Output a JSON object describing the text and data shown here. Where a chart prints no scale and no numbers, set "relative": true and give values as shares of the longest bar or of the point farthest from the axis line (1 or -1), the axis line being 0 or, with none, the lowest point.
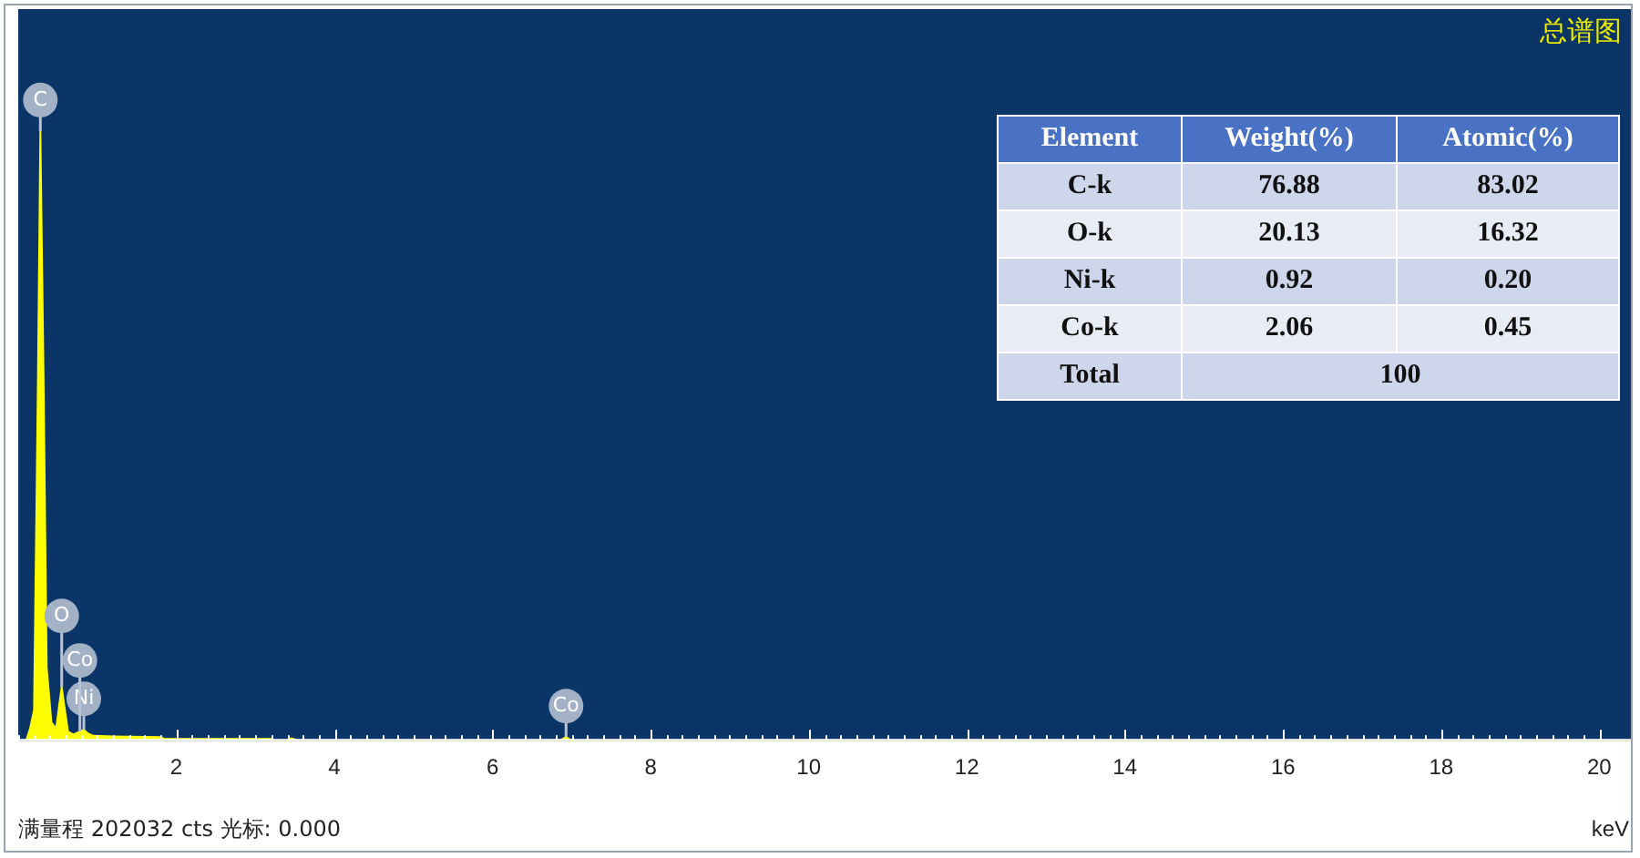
{
  "chart_data": [
    {
      "type": "area",
      "title": "总谱图",
      "xlabel": "keV",
      "relative": true,
      "x": [
        0.1,
        0.15,
        0.2,
        0.25,
        0.28,
        0.32,
        0.36,
        0.42,
        0.48,
        0.52,
        0.55,
        0.58,
        0.63,
        0.7,
        0.78,
        0.83,
        0.88,
        0.95,
        1.2,
        1.8,
        1.85,
        3.2,
        3.25,
        3.4,
        3.45,
        3.55,
        6.85,
        6.93,
        7.0,
        20.4
      ],
      "series": [
        {
          "color": "#ffff00",
          "values": [
            0,
            0.02,
            0.05,
            0.6,
            1,
            0.6,
            0.12,
            0.03,
            0.02,
            0.06,
            0.088,
            0.06,
            0.015,
            0.01,
            0.015,
            0.018,
            0.012,
            0.008,
            0.007,
            0.006,
            0.003,
            0.003,
            0,
            0,
            0.004,
            0,
            0,
            0.006,
            0,
            0
          ]
        }
      ],
      "xlim": [
        0,
        20.4
      ],
      "xticks": [
        {
          "value": 0,
          "label": null
        },
        {
          "value": 0.2,
          "label": null
        },
        {
          "value": 0.4,
          "label": null
        },
        {
          "value": 0.6,
          "label": null
        },
        {
          "value": 0.8,
          "label": null
        },
        {
          "value": 1,
          "label": null
        },
        {
          "value": 1.2,
          "label": null
        },
        {
          "value": 1.4,
          "label": null
        },
        {
          "value": 1.6,
          "label": null
        },
        {
          "value": 1.8,
          "label": null
        },
        2,
        {
          "value": 2.2,
          "label": null
        },
        {
          "value": 2.4,
          "label": null
        },
        {
          "value": 2.6,
          "label": null
        },
        {
          "value": 2.8,
          "label": null
        },
        {
          "value": 3,
          "label": null
        },
        {
          "value": 3.2,
          "label": null
        },
        {
          "value": 3.4,
          "label": null
        },
        {
          "value": 3.6,
          "label": null
        },
        {
          "value": 3.8,
          "label": null
        },
        4,
        {
          "value": 4.2,
          "label": null
        },
        {
          "value": 4.4,
          "label": null
        },
        {
          "value": 4.6,
          "label": null
        },
        {
          "value": 4.8,
          "label": null
        },
        {
          "value": 5,
          "label": null
        },
        {
          "value": 5.2,
          "label": null
        },
        {
          "value": 5.4,
          "label": null
        },
        {
          "value": 5.6,
          "label": null
        },
        {
          "value": 5.8,
          "label": null
        },
        6,
        {
          "value": 6.2,
          "label": null
        },
        {
          "value": 6.4,
          "label": null
        },
        {
          "value": 6.6,
          "label": null
        },
        {
          "value": 6.8,
          "label": null
        },
        {
          "value": 7,
          "label": null
        },
        {
          "value": 7.2,
          "label": null
        },
        {
          "value": 7.4,
          "label": null
        },
        {
          "value": 7.6,
          "label": null
        },
        {
          "value": 7.8,
          "label": null
        },
        8,
        {
          "value": 8.2,
          "label": null
        },
        {
          "value": 8.4,
          "label": null
        },
        {
          "value": 8.6,
          "label": null
        },
        {
          "value": 8.8,
          "label": null
        },
        {
          "value": 9,
          "label": null
        },
        {
          "value": 9.2,
          "label": null
        },
        {
          "value": 9.4,
          "label": null
        },
        {
          "value": 9.6,
          "label": null
        },
        {
          "value": 9.8,
          "label": null
        },
        10,
        {
          "value": 10.2,
          "label": null
        },
        {
          "value": 10.4,
          "label": null
        },
        {
          "value": 10.6,
          "label": null
        },
        {
          "value": 10.8,
          "label": null
        },
        {
          "value": 11,
          "label": null
        },
        {
          "value": 11.2,
          "label": null
        },
        {
          "value": 11.4,
          "label": null
        },
        {
          "value": 11.6,
          "label": null
        },
        {
          "value": 11.8,
          "label": null
        },
        12,
        {
          "value": 12.2,
          "label": null
        },
        {
          "value": 12.4,
          "label": null
        },
        {
          "value": 12.6,
          "label": null
        },
        {
          "value": 12.8,
          "label": null
        },
        {
          "value": 13,
          "label": null
        },
        {
          "value": 13.2,
          "label": null
        },
        {
          "value": 13.4,
          "label": null
        },
        {
          "value": 13.6,
          "label": null
        },
        {
          "value": 13.8,
          "label": null
        },
        14,
        {
          "value": 14.2,
          "label": null
        },
        {
          "value": 14.4,
          "label": null
        },
        {
          "value": 14.6,
          "label": null
        },
        {
          "value": 14.8,
          "label": null
        },
        {
          "value": 15,
          "label": null
        },
        {
          "value": 15.2,
          "label": null
        },
        {
          "value": 15.4,
          "label": null
        },
        {
          "value": 15.6,
          "label": null
        },
        {
          "value": 15.8,
          "label": null
        },
        16,
        {
          "value": 16.2,
          "label": null
        },
        {
          "value": 16.4,
          "label": null
        },
        {
          "value": 16.6,
          "label": null
        },
        {
          "value": 16.8,
          "label": null
        },
        {
          "value": 17,
          "label": null
        },
        {
          "value": 17.2,
          "label": null
        },
        {
          "value": 17.4,
          "label": null
        },
        {
          "value": 17.6,
          "label": null
        },
        {
          "value": 17.8,
          "label": null
        },
        18,
        {
          "value": 18.2,
          "label": null
        },
        {
          "value": 18.4,
          "label": null
        },
        {
          "value": 18.6,
          "label": null
        },
        {
          "value": 18.8,
          "label": null
        },
        {
          "value": 19,
          "label": null
        },
        {
          "value": 19.2,
          "label": null
        },
        {
          "value": 19.4,
          "label": null
        },
        {
          "value": 19.6,
          "label": null
        },
        {
          "value": 19.8,
          "label": null
        },
        20
      ],
      "annotations": [
        {
          "text": "C",
          "x": 0.28,
          "y": 1
        },
        {
          "text": "Ni",
          "x": 0.83,
          "y": 0.018
        },
        {
          "text": "Co",
          "x": 0.78,
          "y": 0.015
        },
        {
          "text": "O",
          "x": 0.55,
          "y": 0.088
        },
        {
          "text": "Co",
          "x": 6.93,
          "y": 0.006
        },
        "满量程 202032 cts 光标: 0.000"
      ]
    },
    {
      "type": "other",
      "annotations": [
        "Element",
        "Weight(%)",
        "Atomic(%)",
        "C-k",
        "76.88",
        "83.02",
        "O-k",
        "20.13",
        "16.32",
        "Ni-k",
        "0.92",
        "0.20",
        "Co-k",
        "2.06",
        "0.45",
        "Total",
        "100"
      ]
    }
  ]
}
